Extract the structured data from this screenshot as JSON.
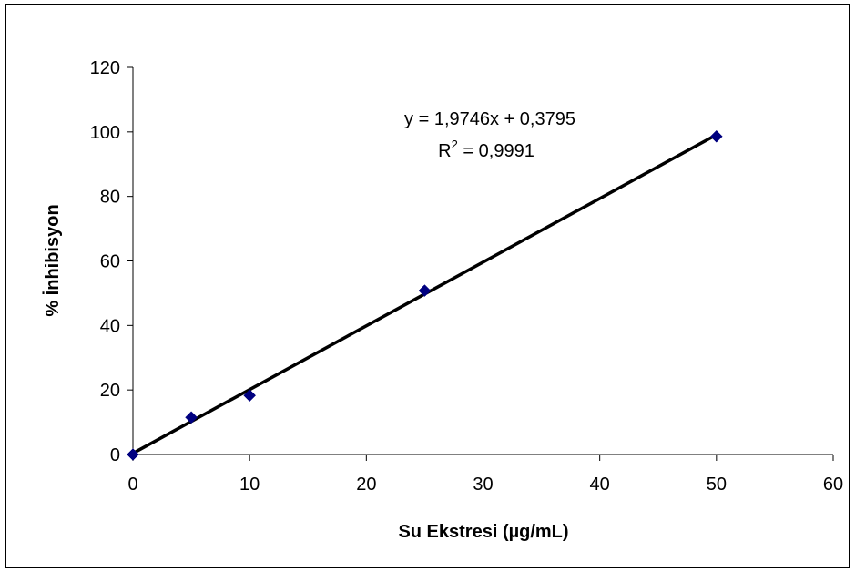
{
  "chart_data": {
    "type": "scatter",
    "xlabel": "Su Ekstresi (µg/mL)",
    "ylabel": "% İnhibisyon",
    "xlim": [
      0,
      60
    ],
    "ylim": [
      0,
      120
    ],
    "xticks": [
      "0",
      "10",
      "20",
      "30",
      "40",
      "50",
      "60"
    ],
    "yticks": [
      "0",
      "20",
      "40",
      "60",
      "80",
      "100",
      "120"
    ],
    "grid": false,
    "series": [
      {
        "x": [
          0,
          5,
          10,
          25,
          50
        ],
        "y": [
          0,
          11.5,
          18.3,
          50.8,
          98.6
        ],
        "color": "#000080",
        "marker": "diamond"
      }
    ],
    "trendline": {
      "type": "linear",
      "slope": 1.9746,
      "intercept": 0.3795,
      "color": "#000000"
    },
    "annotation": {
      "equation": "y = 1,9746x + 0,3795",
      "r2_prefix": "R",
      "r2_sup": "2",
      "r2_value": " = 0,9991"
    }
  }
}
